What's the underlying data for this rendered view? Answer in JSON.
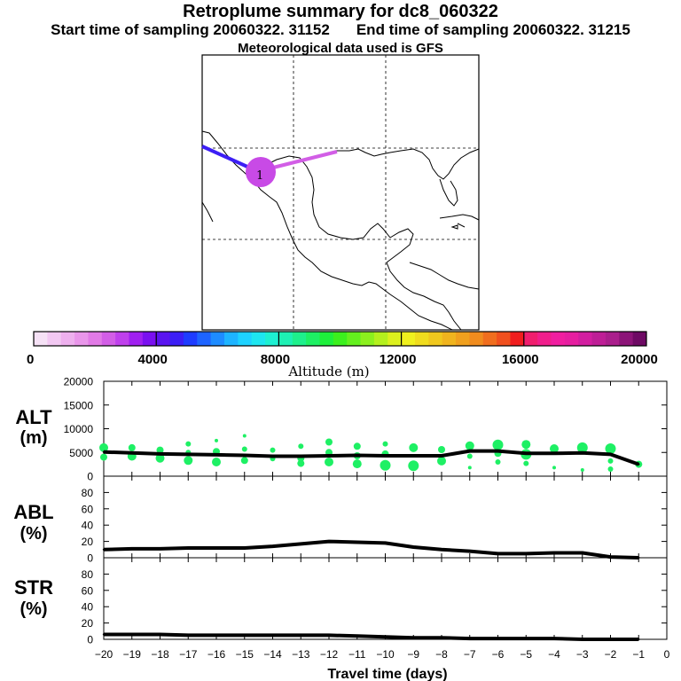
{
  "header": {
    "title": "Retroplume summary for dc8_060322",
    "start_label": "Start time of sampling 20060322. 31152",
    "end_label": "End time of sampling 20060322. 31215",
    "met_label": "Meteorological data used is GFS"
  },
  "colorbar": {
    "label": "Altitude (m)",
    "tick_labels": [
      "0",
      "4000",
      "8000",
      "12000",
      "16000",
      "20000"
    ],
    "colors": [
      "#f5e1f5",
      "#f2c8f2",
      "#eeb0ee",
      "#e996ea",
      "#e17ae6",
      "#d25ee6",
      "#bf40ec",
      "#a020f0",
      "#7a10f0",
      "#5a14f0",
      "#3c1ef5",
      "#1e3cff",
      "#1e64ff",
      "#1e8cff",
      "#1eb4ff",
      "#1ed2ff",
      "#1ee6f0",
      "#1ef0d2",
      "#1ef0b4",
      "#1ef08c",
      "#1ef064",
      "#1ef03c",
      "#3cf01e",
      "#64f01e",
      "#8cf01e",
      "#b4f01e",
      "#dcf01e",
      "#f0f01e",
      "#f0dc1e",
      "#f0c81e",
      "#f0b41e",
      "#f0a01e",
      "#f08c1e",
      "#f06e1e",
      "#f0501e",
      "#f01e1e",
      "#f01e6e",
      "#f01e8c",
      "#f01ea0",
      "#e61ea0",
      "#d21ea0",
      "#be1e96",
      "#aa1e8c",
      "#8c1478",
      "#6e0a64"
    ]
  },
  "map": {
    "location_label": "1",
    "trajectory_colors": [
      "#3c1ef5",
      "#d25ee6"
    ],
    "cluster_color": "#c84ae6"
  },
  "chart_data": [
    {
      "type": "line",
      "panel": "ALT",
      "ylabel_line1": "ALT",
      "ylabel_line2": "(m)",
      "ylim": [
        0,
        20000
      ],
      "yticks": [
        "0",
        "5000",
        "10000",
        "15000",
        "20000"
      ],
      "x": [
        -20,
        -19,
        -18,
        -17,
        -16,
        -15,
        -14,
        -13,
        -12,
        -11,
        -10,
        -9,
        -8,
        -7,
        -6,
        -5,
        -4,
        -3,
        -2,
        -1
      ],
      "values": [
        5100,
        4900,
        4700,
        4600,
        4500,
        4400,
        4200,
        4200,
        4300,
        4400,
        4300,
        4300,
        4300,
        5300,
        5300,
        4800,
        4800,
        4900,
        4600,
        2500
      ],
      "line_color": "#000000",
      "marker_color": "#1ef064",
      "cluster_points": [
        [
          -20,
          6000,
          5
        ],
        [
          -20,
          4000,
          4
        ],
        [
          -19,
          6000,
          4
        ],
        [
          -19,
          4200,
          5
        ],
        [
          -18,
          5500,
          4
        ],
        [
          -18,
          3800,
          5
        ],
        [
          -17,
          6800,
          3
        ],
        [
          -17,
          5000,
          3
        ],
        [
          -17,
          3300,
          5
        ],
        [
          -16,
          7500,
          2
        ],
        [
          -16,
          5200,
          4
        ],
        [
          -16,
          3000,
          5
        ],
        [
          -15,
          8500,
          2
        ],
        [
          -15,
          5700,
          3
        ],
        [
          -15,
          3300,
          4
        ],
        [
          -14,
          5500,
          3
        ],
        [
          -14,
          3700,
          3
        ],
        [
          -13,
          6300,
          3
        ],
        [
          -13,
          3800,
          4
        ],
        [
          -13,
          2700,
          4
        ],
        [
          -12,
          7200,
          4
        ],
        [
          -12,
          5000,
          4
        ],
        [
          -12,
          3000,
          5
        ],
        [
          -11,
          6300,
          4
        ],
        [
          -11,
          4300,
          4
        ],
        [
          -11,
          2600,
          5
        ],
        [
          -10,
          6800,
          3
        ],
        [
          -10,
          4700,
          4
        ],
        [
          -10,
          2300,
          6
        ],
        [
          -9,
          6000,
          5
        ],
        [
          -9,
          2200,
          6
        ],
        [
          -8,
          5600,
          4
        ],
        [
          -8,
          3200,
          5
        ],
        [
          -7,
          6400,
          5
        ],
        [
          -7,
          4200,
          3
        ],
        [
          -7,
          1800,
          2
        ],
        [
          -6,
          6600,
          6
        ],
        [
          -6,
          4800,
          4
        ],
        [
          -6,
          3000,
          3
        ],
        [
          -5,
          6700,
          5
        ],
        [
          -5,
          4600,
          6
        ],
        [
          -5,
          2700,
          3
        ],
        [
          -4,
          5800,
          5
        ],
        [
          -4,
          1800,
          2
        ],
        [
          -3,
          6000,
          6
        ],
        [
          -3,
          1300,
          2
        ],
        [
          -2,
          5800,
          6
        ],
        [
          -2,
          3200,
          3
        ],
        [
          -2,
          1500,
          3
        ],
        [
          -1,
          2500,
          4
        ]
      ]
    },
    {
      "type": "line",
      "panel": "ABL",
      "ylabel_line1": "ABL",
      "ylabel_line2": "(%)",
      "ylim": [
        0,
        100
      ],
      "yticks": [
        "0",
        "20",
        "40",
        "60",
        "80"
      ],
      "x": [
        -20,
        -19,
        -18,
        -17,
        -16,
        -15,
        -14,
        -13,
        -12,
        -11,
        -10,
        -9,
        -8,
        -7,
        -6,
        -5,
        -4,
        -3,
        -2,
        -1
      ],
      "values": [
        10,
        11,
        11,
        12,
        12,
        12,
        14,
        17,
        20,
        19,
        18,
        13,
        10,
        8,
        5,
        5,
        6,
        6,
        1,
        0
      ],
      "line_color": "#000000"
    },
    {
      "type": "line",
      "panel": "STR",
      "ylabel_line1": "STR",
      "ylabel_line2": "(%)",
      "ylim": [
        0,
        100
      ],
      "yticks": [
        "0",
        "20",
        "40",
        "60",
        "80"
      ],
      "x": [
        -20,
        -19,
        -18,
        -17,
        -16,
        -15,
        -14,
        -13,
        -12,
        -11,
        -10,
        -9,
        -8,
        -7,
        -6,
        -5,
        -4,
        -3,
        -2,
        -1
      ],
      "values": [
        6,
        6,
        6,
        5,
        5,
        5,
        5,
        5,
        5,
        4,
        3,
        2,
        2,
        1,
        1,
        1,
        1,
        0,
        0,
        0
      ],
      "line_color": "#000000",
      "xlabel": "Travel time (days)",
      "xtick_labels": [
        "−20",
        "−19",
        "−18",
        "−17",
        "−16",
        "−15",
        "−14",
        "−13",
        "−12",
        "−11",
        "−10",
        "−9",
        "−8",
        "−7",
        "−6",
        "−5",
        "−4",
        "−3",
        "−2",
        "−1",
        "0"
      ]
    }
  ]
}
